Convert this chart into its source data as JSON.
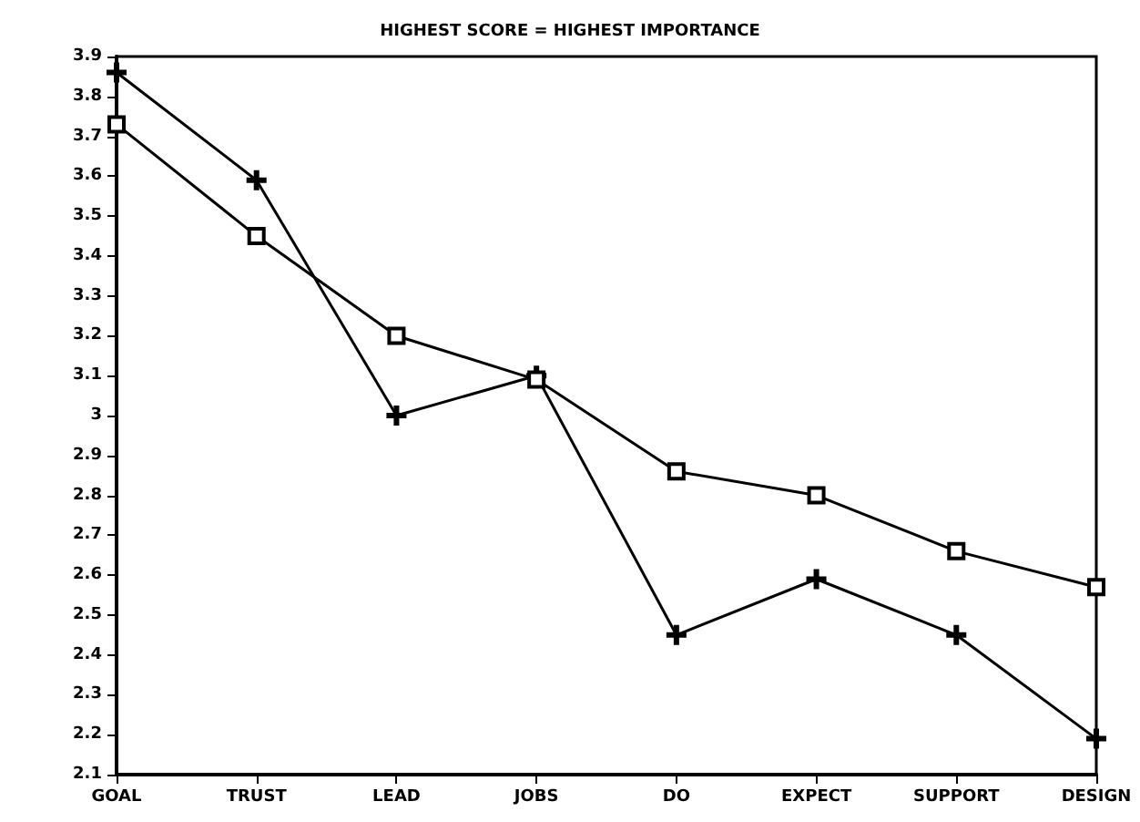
{
  "chart_data": {
    "type": "line",
    "title": "HIGHEST SCORE = HIGHEST IMPORTANCE",
    "categories": [
      "GOAL",
      "TRUST",
      "LEAD",
      "JOBS",
      "DO",
      "EXPECT",
      "SUPPORT",
      "DESIGN"
    ],
    "series": [
      {
        "color": "#000000",
        "marker": "square",
        "values": [
          3.73,
          3.45,
          3.2,
          3.09,
          2.86,
          2.8,
          2.66,
          2.57
        ]
      },
      {
        "color": "#000000",
        "marker": "cross",
        "values": [
          3.86,
          3.59,
          3.0,
          3.1,
          2.45,
          2.59,
          2.45,
          2.19
        ]
      }
    ],
    "ylim": [
      2.1,
      3.9
    ],
    "yticks": [
      2.1,
      2.2,
      2.3,
      2.4,
      2.5,
      2.6,
      2.7,
      2.8,
      2.9,
      3,
      3.1,
      3.2,
      3.3,
      3.4,
      3.5,
      3.6,
      3.7,
      3.8,
      3.9
    ],
    "grid": false,
    "line_style": "solid"
  }
}
